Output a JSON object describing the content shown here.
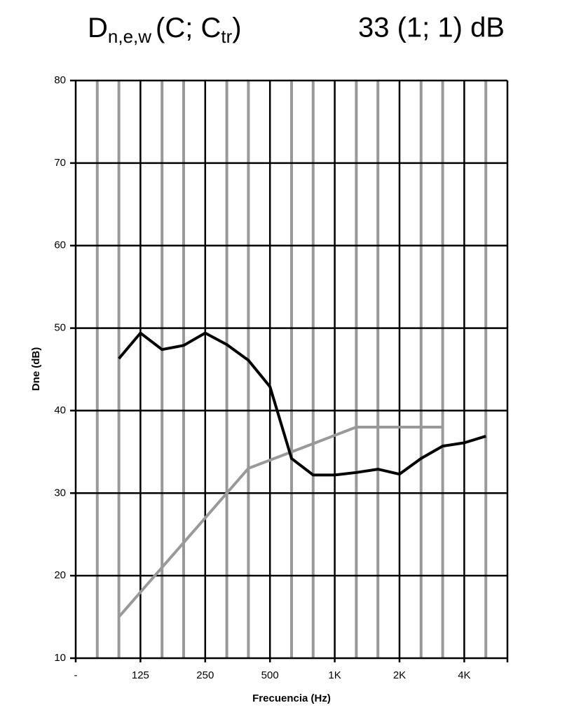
{
  "chart_data": {
    "type": "line",
    "title": {
      "symbol": "D",
      "subscript": "n,e,w",
      "middle": "(C; C",
      "subscript2": "tr",
      "end": ")"
    },
    "annotation": "33 (1; 1) dB",
    "ylabel": "Dne (dB)",
    "xlabel": "Frecuencia (Hz)",
    "categories": [
      "-",
      null,
      null,
      "125",
      null,
      null,
      "250",
      null,
      null,
      "500",
      null,
      null,
      "1K",
      null,
      null,
      "2K",
      null,
      null,
      "4K",
      null,
      null
    ],
    "series": [
      {
        "color": "#000000",
        "values": [
          null,
          null,
          46.3,
          49.4,
          47.4,
          47.9,
          49.4,
          48,
          46.1,
          42.9,
          34.2,
          32.2,
          32.2,
          32.5,
          32.9,
          32.3,
          34.2,
          35.7,
          36.1,
          36.9,
          null
        ]
      },
      {
        "color": "#999999",
        "values": [
          null,
          null,
          15,
          18,
          21,
          24,
          27,
          30,
          33,
          34,
          35,
          36,
          37,
          38,
          38,
          38,
          38,
          38,
          null,
          null,
          null
        ]
      }
    ],
    "ylim": [
      10,
      80
    ],
    "yticks": [
      10,
      20,
      30,
      40,
      50,
      60,
      70,
      80
    ],
    "grid": true
  }
}
